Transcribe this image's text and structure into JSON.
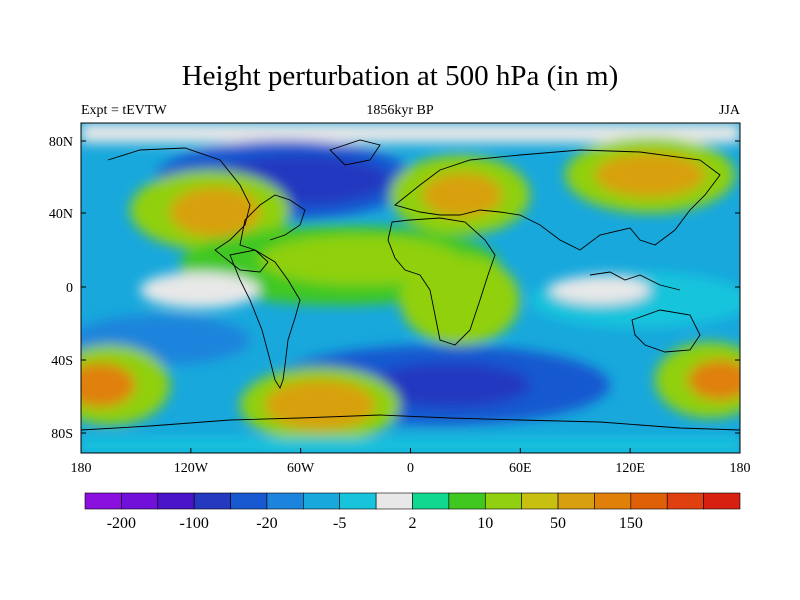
{
  "title": "Height perturbation at 500 hPa (in m)",
  "left_label": "Expt = tEVTW",
  "center_label": "1856kyr BP",
  "right_label": "JJA",
  "lat_ticks": [
    "80N",
    "40N",
    "0",
    "40S",
    "80S"
  ],
  "lon_ticks": [
    "180",
    "120W",
    "60W",
    "0",
    "60E",
    "120E",
    "180"
  ],
  "colorbar": {
    "colors": [
      "#8a10e0",
      "#7010d8",
      "#4a14c8",
      "#2438c0",
      "#1858d0",
      "#1c84dc",
      "#18a8dc",
      "#18c4dc",
      "#e8e8e8",
      "#10d890",
      "#40c820",
      "#90d010",
      "#c8c010",
      "#d8a010",
      "#e08008",
      "#e06008",
      "#e04010",
      "#d82010"
    ],
    "labels": [
      "-200",
      "-100",
      "-20",
      "-5",
      "2",
      "10",
      "50",
      "150"
    ]
  },
  "colors": {
    "land_outline": "#000000",
    "neutral": "#e8e8e8"
  }
}
